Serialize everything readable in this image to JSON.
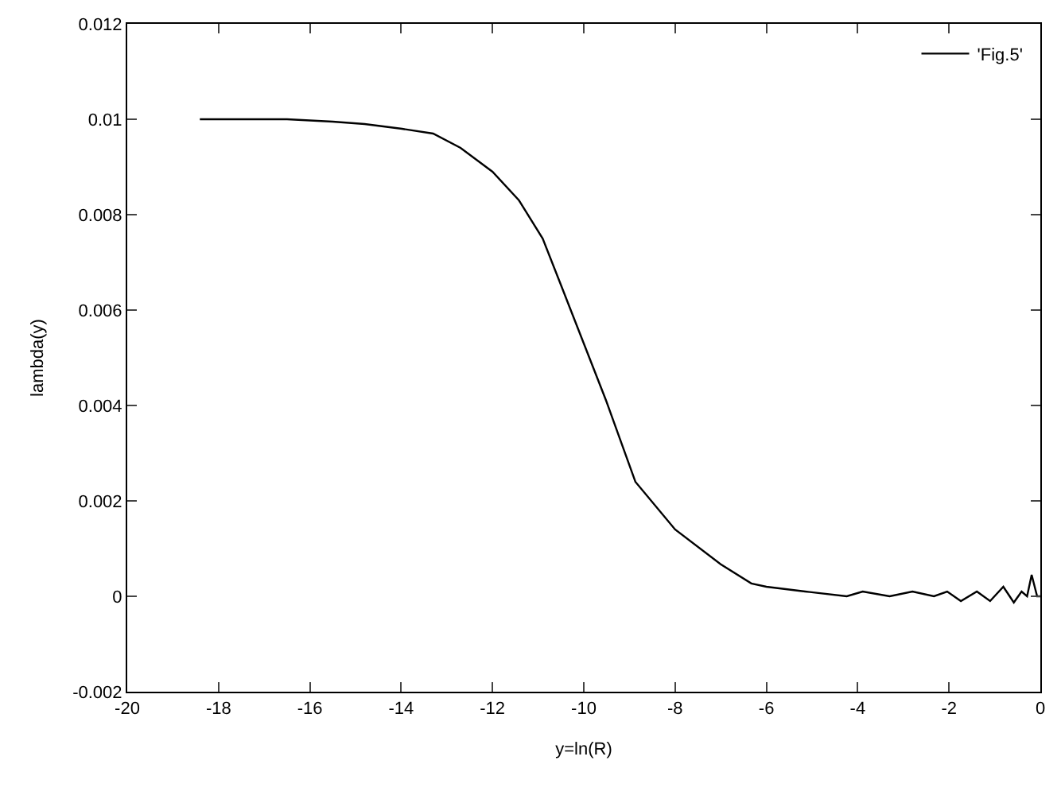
{
  "chart_data": {
    "type": "line",
    "xlabel": "y=ln(R)",
    "ylabel": "lambda(y)",
    "xlim": [
      -20,
      0
    ],
    "xticks": [
      -20,
      -18,
      -16,
      -14,
      -12,
      -10,
      -8,
      -6,
      -4,
      -2,
      0
    ],
    "ylim": [
      -0.002,
      0.012
    ],
    "yticks": [
      -0.002,
      0,
      0.002,
      0.004,
      0.006,
      0.008,
      0.01,
      0.012
    ],
    "legend": "top right",
    "marker": "none",
    "line_style": "solid",
    "series": [
      {
        "name": "'Fig.5'",
        "color": "#000000",
        "x": [
          -18.41,
          -17.5,
          -16.5,
          -15.5,
          -14.8,
          -13.98,
          -13.3,
          -12.7,
          -12.0,
          -11.42,
          -10.9,
          -10.49,
          -10.0,
          -9.51,
          -8.87,
          -8.0,
          -7.0,
          -6.33,
          -6.0,
          -5.15,
          -4.24,
          -3.89,
          -3.3,
          -2.8,
          -2.33,
          -2.04,
          -1.74,
          -1.39,
          -1.1,
          -0.81,
          -0.58,
          -0.41,
          -0.29,
          -0.19,
          -0.07,
          0
        ],
        "values": [
          0.01,
          0.01,
          0.01,
          0.00995,
          0.0099,
          0.0098,
          0.0097,
          0.0094,
          0.0089,
          0.0083,
          0.0075,
          0.0065,
          0.0053,
          0.0041,
          0.0024,
          0.0014,
          0.00067,
          0.00027,
          0.0002,
          0.0001,
          0.0,
          0.0001,
          0.0,
          0.0001,
          0.0,
          0.0001,
          -0.0001,
          0.0001,
          -0.0001,
          0.0002,
          -0.00013,
          0.0001,
          0.0,
          0.00045,
          0.0,
          0.0
        ]
      }
    ]
  }
}
